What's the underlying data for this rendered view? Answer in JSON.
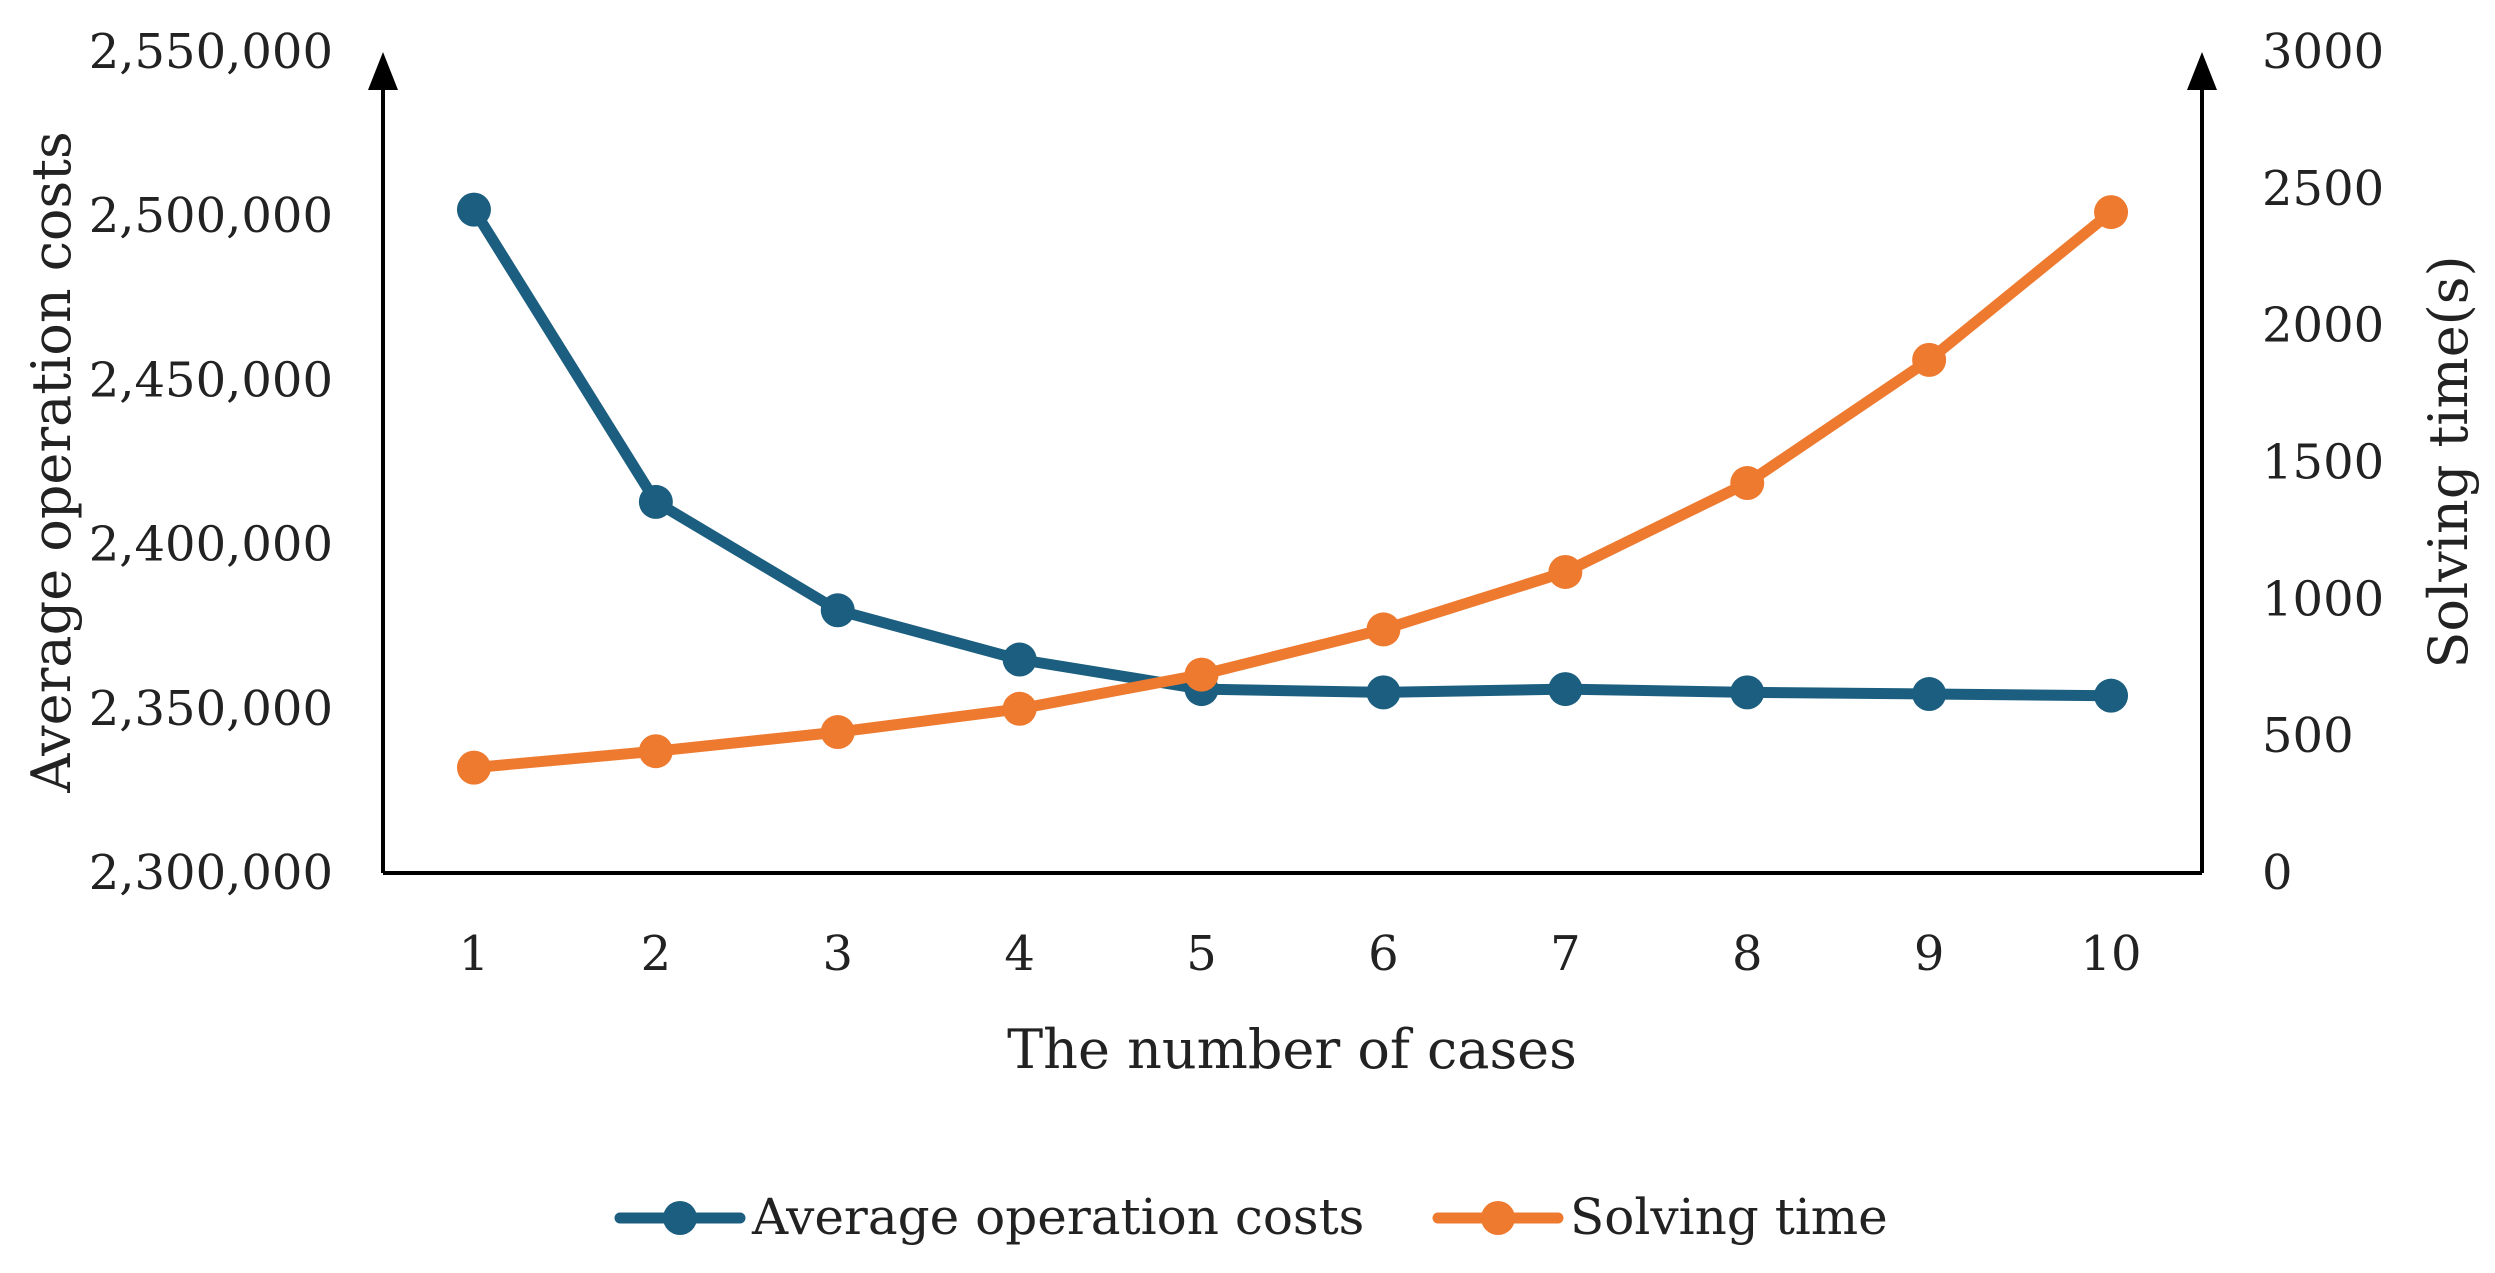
{
  "chart_data": {
    "type": "line",
    "title": "",
    "xlabel": "The number of cases",
    "ylabel_left": "Average operation costs",
    "ylabel_right": "Solving time(s)",
    "categories": [
      "1",
      "2",
      "3",
      "4",
      "5",
      "6",
      "7",
      "8",
      "9",
      "10"
    ],
    "x": [
      1,
      2,
      3,
      4,
      5,
      6,
      7,
      8,
      9,
      10
    ],
    "ylim_left": [
      2300000,
      2550000
    ],
    "ylim_right": [
      0,
      3000
    ],
    "yticks_left": [
      "2,300,000",
      "2,350,000",
      "2,400,000",
      "2,450,000",
      "2,500,000",
      "2,550,000"
    ],
    "yticks_right": [
      "0",
      "500",
      "1000",
      "1500",
      "2000",
      "2500",
      "3000"
    ],
    "legend_position": "bottom",
    "grid": false,
    "series": [
      {
        "name": "Average operation costs",
        "axis": "left",
        "color": "#1b5e7f",
        "values": [
          2502000,
          2413000,
          2380000,
          2365000,
          2356000,
          2355000,
          2356000,
          2355000,
          2354500,
          2354000
        ]
      },
      {
        "name": "Solving time",
        "axis": "right",
        "color": "#ee7a30",
        "values": [
          385,
          445,
          515,
          600,
          725,
          890,
          1100,
          1425,
          1875,
          2415
        ]
      }
    ]
  }
}
